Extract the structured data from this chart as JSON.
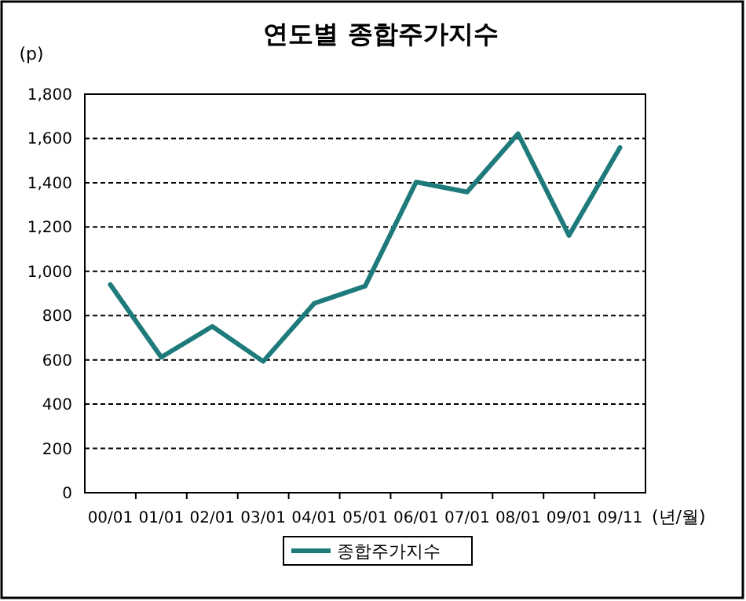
{
  "chart_data": {
    "type": "line",
    "title": "연도별 종합주가지수",
    "ylabel": "(p)",
    "xlabel": "(년/월)",
    "categories": [
      "00/01",
      "01/01",
      "02/01",
      "03/01",
      "04/01",
      "05/01",
      "06/01",
      "07/01",
      "08/01",
      "09/01",
      "09/11"
    ],
    "series": [
      {
        "name": "종합주가지수",
        "color": "#1f7b7b",
        "values": [
          940,
          612,
          751,
          593,
          855,
          933,
          1403,
          1358,
          1621,
          1162,
          1559
        ]
      }
    ],
    "ylim": [
      0,
      1800
    ],
    "yticks": [
      {
        "value": 0,
        "label": "0"
      },
      {
        "value": 200,
        "label": "200"
      },
      {
        "value": 400,
        "label": "400"
      },
      {
        "value": 600,
        "label": "600"
      },
      {
        "value": 800,
        "label": "800"
      },
      {
        "value": 1000,
        "label": "1,000"
      },
      {
        "value": 1200,
        "label": "1,200"
      },
      {
        "value": 1400,
        "label": "1,400"
      },
      {
        "value": 1600,
        "label": "1,600"
      },
      {
        "value": 1800,
        "label": "1,800"
      }
    ],
    "grid": "y",
    "legend": "bottom",
    "line_style": "solid",
    "marker": "none"
  }
}
